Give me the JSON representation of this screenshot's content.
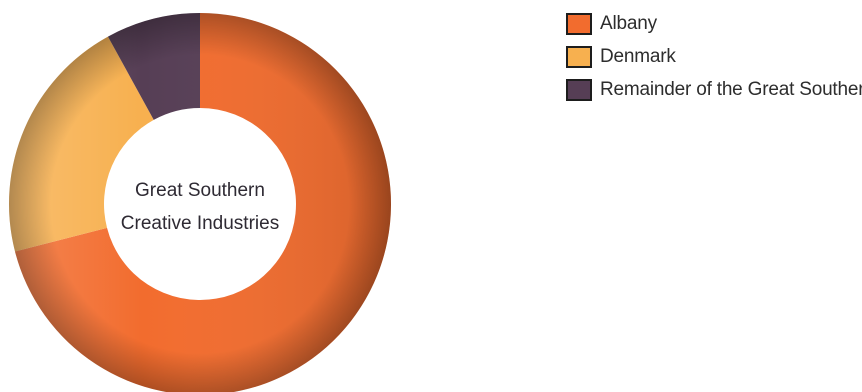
{
  "chart_data": {
    "type": "pie",
    "variant": "donut",
    "center_label": [
      "Great Southern",
      "Creative Industries"
    ],
    "series": [
      {
        "name": "Albany",
        "value": 71,
        "color": "#f26c2e"
      },
      {
        "name": "Denmark",
        "value": 21,
        "color": "#f7b04f"
      },
      {
        "name": "Remainder of the Great Southern",
        "value": 8,
        "color": "#563e55"
      }
    ],
    "legend_placement": "top-right"
  }
}
